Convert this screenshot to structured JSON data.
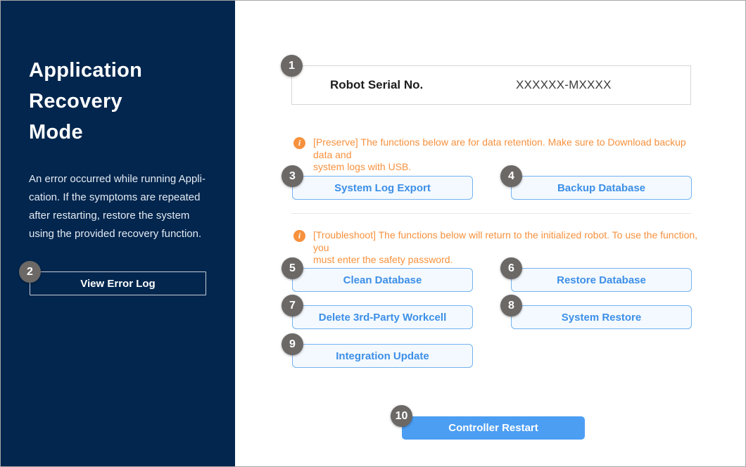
{
  "colors": {
    "sidebar_bg": "#02264E",
    "accent_blue": "#3D8FE8",
    "action_button_border": "#74B2F0",
    "action_button_bg": "#F3F9FE",
    "primary_button_bg": "#4C9EF3",
    "note_orange": "#F7913D",
    "badge_gray": "#6B6866"
  },
  "sidebar": {
    "title": "Application\nRecovery\nMode",
    "description": "An error occurred while running Appli-\ncation. If the symptoms are repeated\nafter restarting, restore the system\nusing the provided recovery function.",
    "view_error_log": "View Error Log"
  },
  "serial": {
    "label": "Robot Serial No.",
    "value": "XXXXXX-MXXXX"
  },
  "notes": {
    "info_glyph": "i",
    "preserve": "[Preserve] The functions below are for data retention. Make sure to Download backup data and\nsystem logs with USB.",
    "troubleshoot": "[Troubleshoot] The functions below will return to the initialized robot. To use the function, you\nmust enter the safety password."
  },
  "actions": {
    "system_log_export": "System Log Export",
    "backup_database": "Backup Database",
    "clean_database": "Clean Database",
    "restore_database": "Restore Database",
    "delete_workcell": "Delete 3rd-Party Workcell",
    "system_restore": "System Restore",
    "integration_update": "Integration Update",
    "controller_restart": "Controller Restart"
  },
  "steps": {
    "s1": "1",
    "s2": "2",
    "s3": "3",
    "s4": "4",
    "s5": "5",
    "s6": "6",
    "s7": "7",
    "s8": "8",
    "s9": "9",
    "s10": "10"
  }
}
